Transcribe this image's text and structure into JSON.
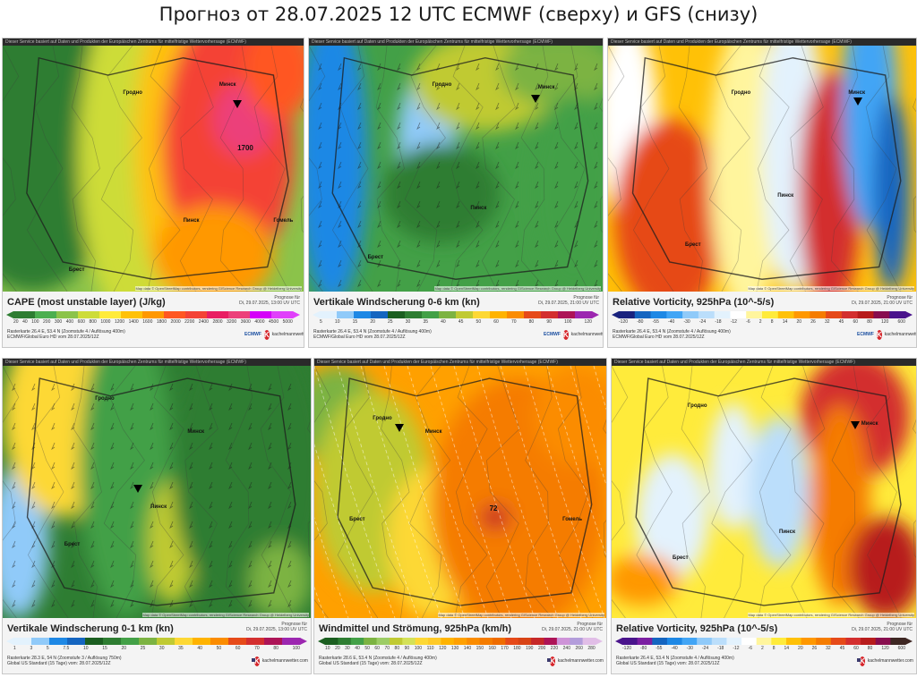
{
  "title": "Прогноз от 28.07.2025 12 UTC ECMWF (сверху) и GFS (снизу)",
  "header_text": "Dieser Service basiert auf Daten und Produkten der Europäischen Zentrums für mittelfristige Wettervorhersage (ECMWF)",
  "map_credit": "Map data © OpenStreetMap contributors, rendering GIScience Research Group @ Heidelberg University",
  "panels": [
    {
      "id": "cape",
      "title": "CAPE (most unstable layer) (J/kg)",
      "forecast": "Prognose für\nDi, 29.07.2025, 13:00 UV UTC",
      "ticks": [
        "20",
        "40",
        "100",
        "200",
        "300",
        "400",
        "600",
        "800",
        "1000",
        "1200",
        "1400",
        "1600",
        "1800",
        "2000",
        "2200",
        "2400",
        "2800",
        "3200",
        "3600",
        "4000",
        "4500",
        "5000"
      ],
      "colors": [
        "#2e7d32",
        "#4caf50",
        "#8bc34a",
        "#cddc39",
        "#ffeb3b",
        "#ffc107",
        "#ff9800",
        "#ff5722",
        "#f44336",
        "#e91e63",
        "#ec407a",
        "#d500f9",
        "#e040fb"
      ],
      "meta": "Rasterkarte 26.4 E, 53.4 N (Zoomstufe 4 / Auflösung 400m)\nECMWF/Global Euro HD vom 28.07.2025/12Z",
      "source": "ECMWF",
      "value_label": "1700"
    },
    {
      "id": "shear06",
      "title": "Vertikale Windscherung 0-6 km (kn)",
      "forecast": "Prognose für\nDi, 29.07.2025, 21:00 UV UTC",
      "ticks": [
        "5",
        "10",
        "15",
        "20",
        "25",
        "30",
        "35",
        "40",
        "45",
        "50",
        "60",
        "70",
        "80",
        "90",
        "100",
        "120"
      ],
      "colors": [
        "#e3f2fd",
        "#90caf9",
        "#1e88e5",
        "#1565c0",
        "#1b5e20",
        "#2e7d32",
        "#43a047",
        "#7cb342",
        "#c0ca33",
        "#fdd835",
        "#ffb300",
        "#fb8c00",
        "#e64a19",
        "#d32f2f",
        "#ad1457",
        "#9c27b0"
      ],
      "meta": "Rasterkarte 26.4 E, 53.4 N (Zoomstufe 4 / Auflösung 400m)\nECMWF/Global Euro HD vom 28.07.2025/12Z",
      "source": "ECMWF"
    },
    {
      "id": "vort925_ec",
      "title": "Relative Vorticity, 925hPa (10^-5/s)",
      "forecast": "Prognose für\nDi, 29.07.2025, 21:00 UV UTC",
      "ticks": [
        "-120",
        "-80",
        "-55",
        "-40",
        "-30",
        "-24",
        "-18",
        "-12",
        "-6",
        "2",
        "8",
        "14",
        "20",
        "26",
        "32",
        "45",
        "60",
        "80",
        "120",
        "600"
      ],
      "colors": [
        "#1a237e",
        "#1565c0",
        "#1e88e5",
        "#42a5f5",
        "#90caf9",
        "#bbdefb",
        "#e3f2fd",
        "#ffffff",
        "#fff59d",
        "#ffeb3b",
        "#ffc107",
        "#ff9800",
        "#f57c00",
        "#e64a19",
        "#d32f2f",
        "#b71c1c",
        "#880e4f",
        "#4a148c"
      ],
      "meta": "Rasterkarte 26.4 E, 53.4 N (Zoomstufe 4 / Auflösung 400m)\nECMWF/Global Euro HD vom 28.07.2025/12Z",
      "source": "ECMWF"
    },
    {
      "id": "shear01",
      "title": "Vertikale Windscherung 0-1 km (kn)",
      "forecast": "Prognose für\nDi, 29.07.2025, 13:00 UV UTC",
      "ticks": [
        "1",
        "3",
        "5",
        "7.5",
        "10",
        "15",
        "20",
        "25",
        "30",
        "35",
        "40",
        "50",
        "60",
        "70",
        "80",
        "100"
      ],
      "colors": [
        "#e3f2fd",
        "#90caf9",
        "#1e88e5",
        "#1565c0",
        "#1b5e20",
        "#2e7d32",
        "#43a047",
        "#7cb342",
        "#c0ca33",
        "#fdd835",
        "#ffb300",
        "#fb8c00",
        "#e64a19",
        "#d32f2f",
        "#ad1457",
        "#9c27b0"
      ],
      "meta": "Rasterkarte 28.3 E, 54 N (Zoomstufe 3 / Auflösung 750m)\nGlobal US Standard (15 Tage) vom: 28.07.2025/12Z",
      "source": "GFS"
    },
    {
      "id": "wind925",
      "title": "Windmittel und Strömung, 925hPa (km/h)",
      "forecast": "Prognose für\nDi, 29.07.2025, 21:00 UV UTC",
      "ticks": [
        "10",
        "20",
        "30",
        "40",
        "50",
        "60",
        "70",
        "80",
        "90",
        "100",
        "110",
        "120",
        "130",
        "140",
        "150",
        "160",
        "170",
        "180",
        "190",
        "200",
        "220",
        "240",
        "260",
        "280"
      ],
      "colors": [
        "#1b5e20",
        "#2e7d32",
        "#43a047",
        "#7cb342",
        "#9ccc65",
        "#c0ca33",
        "#d4e157",
        "#fdd835",
        "#ffca28",
        "#ffb300",
        "#ffa000",
        "#fb8c00",
        "#f57c00",
        "#ef6c00",
        "#e64a19",
        "#d84315",
        "#c62828",
        "#ad1457",
        "#ce93d8",
        "#b39ddb",
        "#e1bee7"
      ],
      "meta": "Rasterkarte 28.6 E, 53.4 N (Zoomstufe 4 / Auflösung 400m)\nGlobal US Standard (15 Tage) vom: 28.07.2025/12Z",
      "source": "GFS",
      "value_label": "72"
    },
    {
      "id": "vort925_gfs",
      "title": "Relative Vorticity, 925hPa (10^-5/s)",
      "forecast": "Prognose für\nDi, 29.07.2025, 21:00 UV UTC",
      "ticks": [
        "-120",
        "-80",
        "-55",
        "-40",
        "-30",
        "-24",
        "-18",
        "-12",
        "-6",
        "2",
        "8",
        "14",
        "20",
        "26",
        "32",
        "45",
        "60",
        "80",
        "120",
        "600"
      ],
      "colors": [
        "#4a148c",
        "#7b1fa2",
        "#1565c0",
        "#1e88e5",
        "#42a5f5",
        "#90caf9",
        "#bbdefb",
        "#e3f2fd",
        "#ffffff",
        "#fff59d",
        "#ffeb3b",
        "#ffc107",
        "#ff9800",
        "#f57c00",
        "#e64a19",
        "#d32f2f",
        "#b71c1c",
        "#880e4f",
        "#3e2723"
      ],
      "meta": "Rasterkarte 26.4 E, 53.4 N (Zoomstufe 4 / Auflösung 400m)\nGlobal US Standard (15 Tage) vom: 28.07.2025/12Z",
      "source": "GFS"
    }
  ],
  "logo_text": "kachelmannwetter.com",
  "logo_letter": "K"
}
